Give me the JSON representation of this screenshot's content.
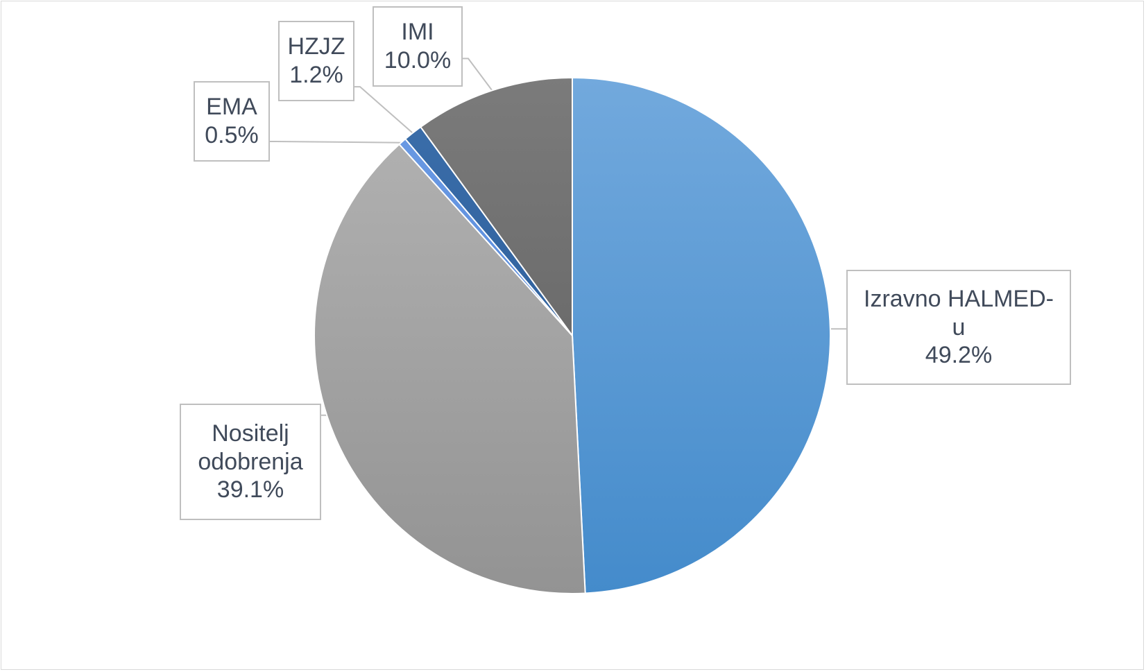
{
  "chart_data": {
    "type": "pie",
    "title": "",
    "start_angle_deg": 0,
    "direction": "clockwise",
    "slices": [
      {
        "label": "Izravno HALMED-u",
        "label_lines": [
          "Izravno HALMED-",
          "u"
        ],
        "value": 49.2,
        "display": "49.2%",
        "color": "#4f97d8",
        "color_light": "#72a9dd",
        "color_dark": "#448bcb"
      },
      {
        "label": "Nositelj odobrenja",
        "label_lines": [
          "Nositelj",
          "odobrenja"
        ],
        "value": 39.1,
        "display": "39.1%",
        "color": "#a6a6a6",
        "color_light": "#b4b4b4",
        "color_dark": "#939393"
      },
      {
        "label": "EMA",
        "label_lines": [
          "EMA"
        ],
        "value": 0.5,
        "display": "0.5%",
        "color": "#5b8fe0",
        "color_light": "#6d9ce5",
        "color_dark": "#4a7fd4"
      },
      {
        "label": "HZJZ",
        "label_lines": [
          "HZJZ"
        ],
        "value": 1.2,
        "display": "1.2%",
        "color": "#2f64a0",
        "color_light": "#3c6fab",
        "color_dark": "#245592"
      },
      {
        "label": "IMI",
        "label_lines": [
          "IMI"
        ],
        "value": 10.0,
        "display": "10.0%",
        "color": "#6a6a6a",
        "color_light": "#7b7b7b",
        "color_dark": "#5c5c5c"
      }
    ],
    "data_labels": "callout-boxes",
    "legend": "none",
    "border_color": "#d9d9d9",
    "label_border_color": "#bfbfbf",
    "label_text_color": "#404a5a"
  }
}
